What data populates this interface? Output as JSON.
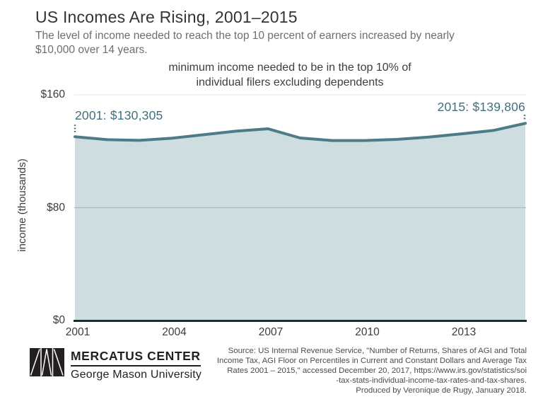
{
  "header": {
    "title": "US Incomes Are Rising, 2001–2015",
    "subtitle_lines": [
      "The level of income needed to reach the top 10 percent of earners increased by nearly",
      "$10,000 over 14 years."
    ]
  },
  "chart_data": {
    "type": "area",
    "title_lines": [
      "minimum income needed to be in the top 10% of",
      "individual filers excluding dependents"
    ],
    "ylabel": "income (thousands)",
    "x": [
      2001,
      2002,
      2003,
      2004,
      2005,
      2006,
      2007,
      2008,
      2009,
      2010,
      2011,
      2012,
      2013,
      2014,
      2015
    ],
    "values": [
      130.3,
      128.2,
      127.7,
      129.2,
      131.7,
      134.2,
      135.9,
      129.4,
      127.6,
      127.6,
      128.4,
      130.0,
      132.3,
      134.7,
      139.8
    ],
    "ylim": [
      0,
      160
    ],
    "yticks": [
      {
        "value": 160,
        "label": "$160"
      },
      {
        "value": 80,
        "label": "$80"
      },
      {
        "value": 0,
        "label": "$0"
      }
    ],
    "xticks": [
      {
        "value": 2001,
        "label": "2001"
      },
      {
        "value": 2004,
        "label": "2004"
      },
      {
        "value": 2007,
        "label": "2007"
      },
      {
        "value": 2010,
        "label": "2010"
      },
      {
        "value": 2013,
        "label": "2013"
      }
    ],
    "grid": "horizontal",
    "legend": "none",
    "annotations": [
      {
        "year": 2001,
        "value": 130.305,
        "text": "2001: $130,305",
        "align": "left"
      },
      {
        "year": 2015,
        "value": 139.806,
        "text": "2015: $139,806",
        "align": "right"
      }
    ],
    "colors": {
      "line": "#4d7b88",
      "fill": "#cedde0",
      "annotation": "#40707d",
      "grid_top": "#e9e9e9",
      "grid_mid": "#a8bcc1",
      "axis": "#1b2b30",
      "tick_text": "#3c3c3c",
      "logo": "#231f20"
    }
  },
  "footer": {
    "logo": {
      "primary": "MERCATUS CENTER",
      "secondary": "George Mason University"
    },
    "source_lines": [
      "Source: US Internal Revenue Service, \"Number of Returns, Shares of AGI and Total",
      "Income Tax, AGI Floor on Percentiles in Current and Constant Dollars and Average Tax",
      "Rates 2001 – 2015,\" accessed December 20, 2017, https://www.irs.gov/statistics/soi",
      "-tax-stats-individual-income-tax-rates-and-tax-shares.",
      "Produced by Veronique de Rugy, January 2018."
    ]
  }
}
